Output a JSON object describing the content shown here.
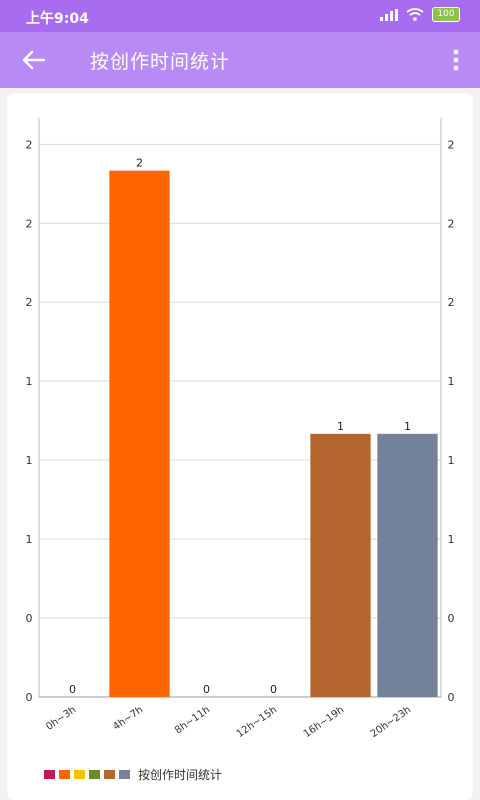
{
  "status_bar": {
    "time": "上午9:04",
    "battery": "100",
    "icons": [
      "signal-icon",
      "wifi-icon",
      "battery-icon"
    ]
  },
  "app_bar": {
    "title": "按创作时间统计",
    "back_icon": "arrow-left-icon",
    "menu_icon": "more-vertical-icon"
  },
  "chart_data": {
    "type": "bar",
    "categories": [
      "0h~3h",
      "4h~7h",
      "8h~11h",
      "12h~15h",
      "16h~19h",
      "20h~23h"
    ],
    "values": [
      0,
      2,
      0,
      0,
      1,
      1
    ],
    "value_labels": [
      "0",
      "2",
      "0",
      "0",
      "1",
      "1"
    ],
    "colors": [
      "#c2185b",
      "#ff6600",
      "#f5c400",
      "#6b8e23",
      "#b5662f",
      "#74839b"
    ],
    "ylim": [
      0,
      2.2
    ],
    "yticks": [
      0,
      0.3,
      0.6,
      0.9,
      1.2,
      1.5,
      1.8,
      2.1
    ],
    "ytick_labels": [
      "0",
      "0",
      "1",
      "1",
      "1",
      "2",
      "2",
      "2"
    ],
    "grid": true,
    "dual_y_axis": true,
    "legend": {
      "placement": "bottom-left",
      "label": "按创作时间统计",
      "colors": [
        "#c2185b",
        "#ff6600",
        "#f5c400",
        "#6b8e23",
        "#b5662f",
        "#74839b"
      ]
    }
  }
}
